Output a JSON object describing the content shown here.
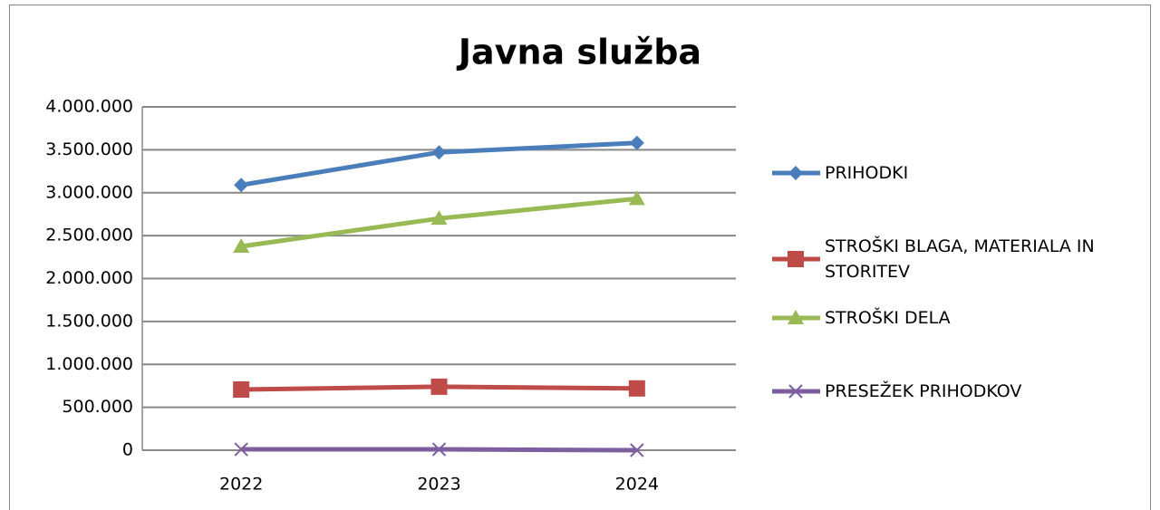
{
  "chart_data": {
    "type": "line",
    "title": "Javna služba",
    "categories": [
      "2022",
      "2023",
      "2024"
    ],
    "series": [
      {
        "name": "PRIHODKI",
        "color": "#4a7ebb",
        "marker": "diamond",
        "values": [
          3090000,
          3470000,
          3580000
        ]
      },
      {
        "name": "STROŠKI BLAGA, MATERIALA IN STORITEV",
        "color": "#be4b48",
        "marker": "square",
        "values": [
          707000,
          740000,
          720000
        ]
      },
      {
        "name": "STROŠKI DELA",
        "color": "#98b954",
        "marker": "triangle",
        "values": [
          2375000,
          2700000,
          2930000
        ]
      },
      {
        "name": "PRESEŽEK PRIHODKOV",
        "color": "#7d5fa0",
        "marker": "x",
        "values": [
          10000,
          10000,
          0
        ]
      }
    ],
    "ylim": [
      0,
      4000000
    ],
    "yticks": [
      0,
      {
        "value": 500000,
        "label": "500.000"
      },
      {
        "value": 1000000,
        "label": "1.000.000"
      },
      {
        "value": 1500000,
        "label": "1.500.000"
      },
      {
        "value": 2000000,
        "label": "2.000.000"
      },
      {
        "value": 2500000,
        "label": "2.500.000"
      },
      {
        "value": 3000000,
        "label": "3.000.000"
      },
      {
        "value": 3500000,
        "label": "3.500.000"
      },
      {
        "value": 4000000,
        "label": "4.000.000"
      }
    ],
    "grid": true,
    "legend": "right"
  }
}
